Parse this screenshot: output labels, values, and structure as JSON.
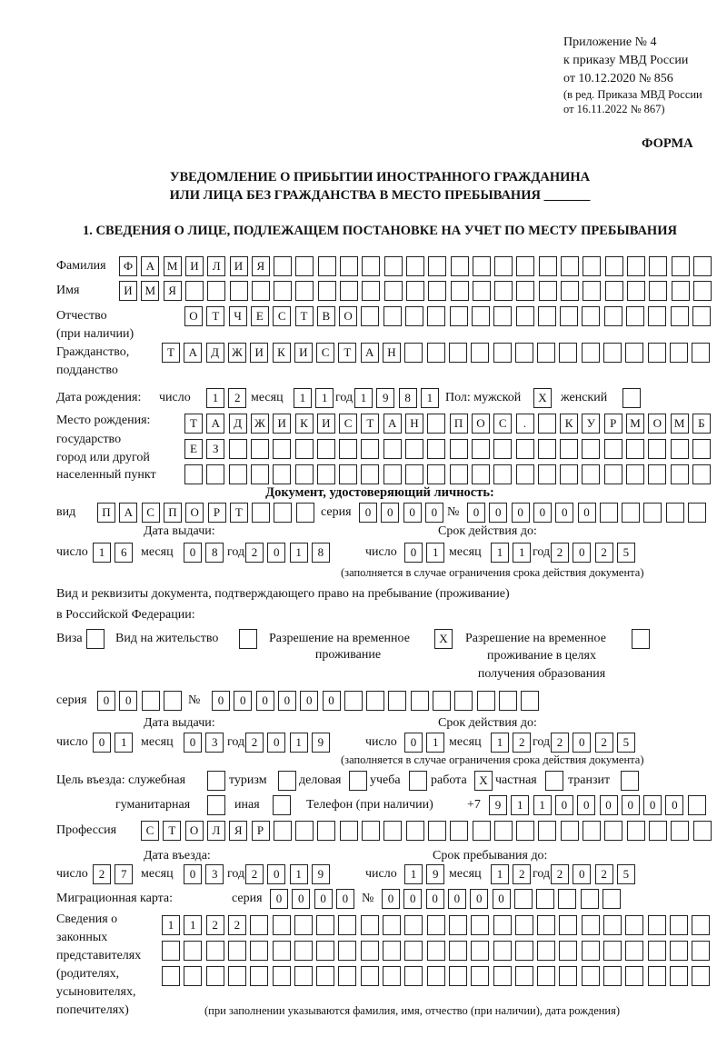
{
  "header": {
    "appendix": "Приложение № 4",
    "order": "к приказу МВД России",
    "order_date": "от 10.12.2020 № 856",
    "edit_note_1": "(в ред. Приказа МВД России",
    "edit_note_2": "от 16.11.2022 № 867)"
  },
  "form_label": "ФОРМА",
  "title": {
    "line1": "УВЕДОМЛЕНИЕ О ПРИБЫТИИ ИНОСТРАННОГО ГРАЖДАНИНА",
    "line2": "ИЛИ ЛИЦА БЕЗ ГРАЖДАНСТВА В МЕСТО ПРЕБЫВАНИЯ _______"
  },
  "section1": {
    "title": "1. СВЕДЕНИЯ О ЛИЦЕ, ПОДЛЕЖАЩЕМ ПОСТАНОВКЕ НА УЧЕТ ПО МЕСТУ ПРЕБЫВАНИЯ"
  },
  "common": {
    "day": "число",
    "month": "месяц",
    "year": "год",
    "number_sign": "№",
    "series": "серия"
  },
  "person": {
    "surname_label": "Фамилия",
    "surname": "ФАМИЛИЯ",
    "name_label": "Имя",
    "name": "ИМЯ",
    "patronymic_label": "Отчество",
    "patronymic_note": "(при наличии)",
    "patronymic": "ОТЧЕСТВО",
    "citizenship_label": "Гражданство,",
    "citizenship_label2": "подданство",
    "citizenship": "ТАДЖИКИСТАН"
  },
  "birth": {
    "label": "Дата рождения:",
    "day": "12",
    "month": "11",
    "year": "1981",
    "sex_label": "Пол: мужской",
    "male": "X",
    "female_label": "женский",
    "female": ""
  },
  "birthplace": {
    "label1": "Место рождения:",
    "label2": "государство",
    "label3": "город или другой",
    "label4": "населенный пункт",
    "line1": "ТАДЖИКИСТАН ПОС. КУРМОМБ",
    "line2": "ЕЗ",
    "line3": ""
  },
  "id_document": {
    "heading": "Документ, удостоверяющий личность:",
    "type_label": "вид",
    "type": "ПАСПОРТ",
    "series": "0000",
    "number": "000000",
    "issue_label": "Дата выдачи:",
    "issue": {
      "day": "16",
      "month": "08",
      "year": "2018"
    },
    "valid_label": "Срок действия до:",
    "valid": {
      "day": "01",
      "month": "11",
      "year": "2025"
    },
    "note": "(заполняется в случае ограничения срока действия документа)"
  },
  "stay_document": {
    "heading": "Вид и реквизиты документа, подтверждающего право на пребывание (проживание)",
    "heading2": "в Российской Федерации:",
    "visa_label": "Виза",
    "visa": "",
    "residence_permit_label": "Вид на жительство",
    "residence_permit": "",
    "temp_residence_label": "Разрешение на временное",
    "temp_residence_label2": "проживание",
    "temp_residence": "X",
    "temp_edu_label": "Разрешение на временное",
    "temp_edu_label2": "проживание в целях",
    "temp_edu_label3": "получения образования",
    "temp_edu": "",
    "series": "00",
    "number": "000000",
    "issue_label": "Дата выдачи:",
    "issue": {
      "day": "01",
      "month": "03",
      "year": "2019"
    },
    "valid_label": "Срок действия до:",
    "valid": {
      "day": "01",
      "month": "12",
      "year": "2025"
    },
    "note": "(заполняется в случае ограничения срока действия документа)"
  },
  "purpose": {
    "label": "Цель въезда: служебная",
    "official": "",
    "tourism_label": "туризм",
    "tourism": "",
    "business_label": "деловая",
    "business": "",
    "study_label": "учеба",
    "study": "",
    "work_label": "работа",
    "work": "X",
    "private_label": "частная",
    "private": "",
    "transit_label": "транзит",
    "transit": "",
    "humanitarian_label": "гуманитарная",
    "humanitarian": "",
    "other_label": "иная",
    "other": ""
  },
  "phone": {
    "label": "Телефон (при наличии)",
    "prefix": "+7",
    "value": "911000000"
  },
  "profession": {
    "label": "Профессия",
    "value": "СТОЛЯР"
  },
  "entry": {
    "entry_label": "Дата въезда:",
    "entry": {
      "day": "27",
      "month": "03",
      "year": "2019"
    },
    "stay_until_label": "Срок пребывания до:",
    "stay_until": {
      "day": "19",
      "month": "12",
      "year": "2025"
    }
  },
  "migration_card": {
    "label": "Миграционная карта:",
    "series": "0000",
    "number": "000000"
  },
  "representatives": {
    "label1": "Сведения о",
    "label2": "законных",
    "label3": "представителях",
    "label4": "(родителях,",
    "label5": "усыновителях,",
    "label6": "попечителях)",
    "line1": "1122",
    "line2": "",
    "line3": "",
    "note": "(при заполнении указываются фамилия, имя, отчество (при наличии), дата рождения)"
  }
}
